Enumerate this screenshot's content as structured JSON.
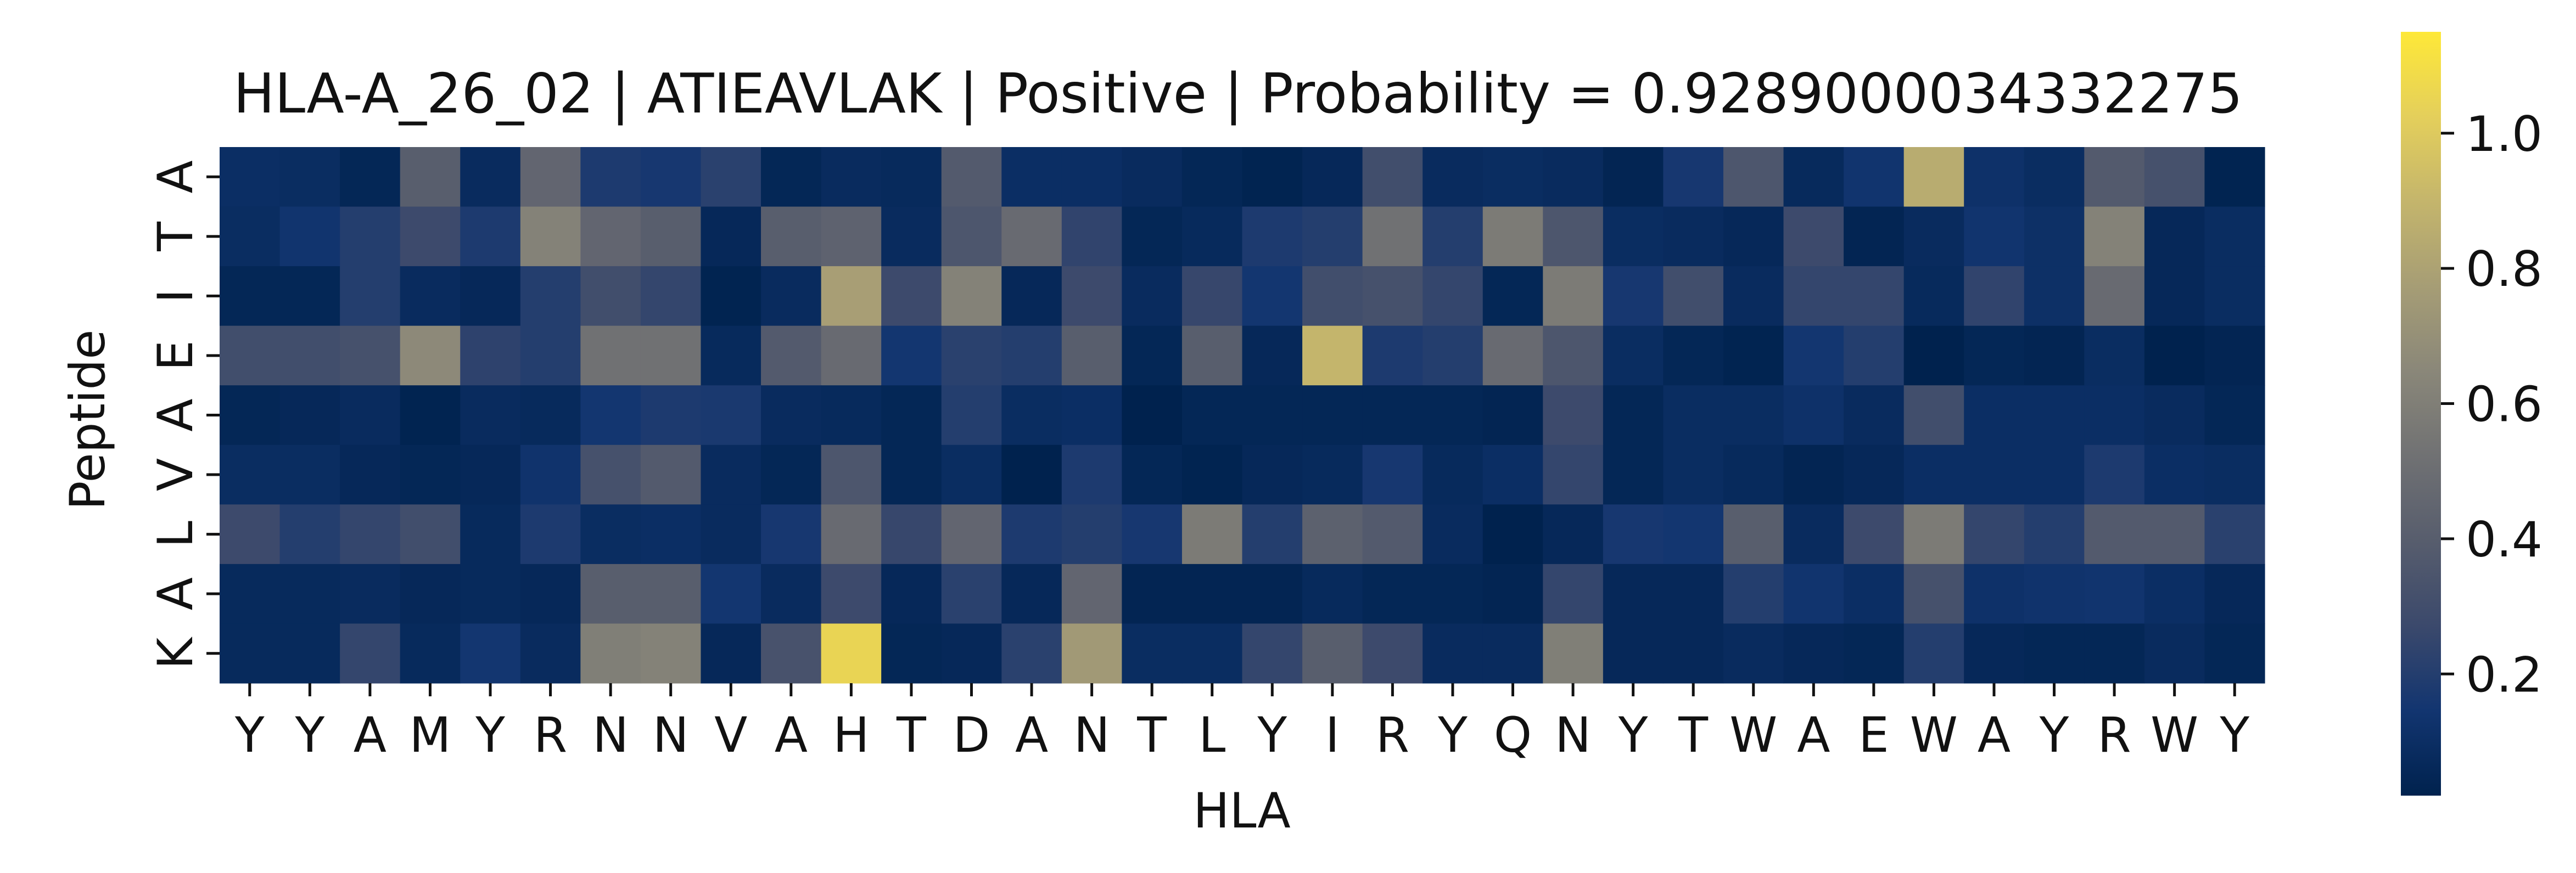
{
  "chart_data": {
    "type": "heatmap",
    "title": "HLA-A_26_02 | ATIEAVLAK | Positive | Probability = 0.9289000034332275",
    "xlabel": "HLA",
    "ylabel": "Peptide",
    "x_categories": [
      "Y",
      "Y",
      "A",
      "M",
      "Y",
      "R",
      "N",
      "N",
      "V",
      "A",
      "H",
      "T",
      "D",
      "A",
      "N",
      "T",
      "L",
      "Y",
      "I",
      "R",
      "Y",
      "Q",
      "N",
      "Y",
      "T",
      "W",
      "A",
      "E",
      "W",
      "A",
      "Y",
      "R",
      "W",
      "Y"
    ],
    "y_categories": [
      "A",
      "T",
      "I",
      "E",
      "A",
      "V",
      "L",
      "A",
      "K"
    ],
    "values": [
      [
        0.1,
        0.09,
        0.05,
        0.4,
        0.08,
        0.45,
        0.18,
        0.16,
        0.22,
        0.05,
        0.08,
        0.07,
        0.38,
        0.1,
        0.1,
        0.08,
        0.05,
        0.03,
        0.06,
        0.3,
        0.08,
        0.09,
        0.08,
        0.04,
        0.16,
        0.35,
        0.07,
        0.14,
        0.85,
        0.12,
        0.09,
        0.38,
        0.32,
        0.03
      ],
      [
        0.09,
        0.14,
        0.2,
        0.28,
        0.18,
        0.62,
        0.45,
        0.4,
        0.06,
        0.4,
        0.43,
        0.08,
        0.35,
        0.48,
        0.24,
        0.05,
        0.07,
        0.18,
        0.2,
        0.52,
        0.2,
        0.58,
        0.35,
        0.09,
        0.08,
        0.06,
        0.28,
        0.04,
        0.08,
        0.14,
        0.11,
        0.62,
        0.06,
        0.09
      ],
      [
        0.05,
        0.05,
        0.2,
        0.08,
        0.06,
        0.2,
        0.3,
        0.25,
        0.03,
        0.08,
        0.78,
        0.28,
        0.62,
        0.06,
        0.28,
        0.08,
        0.26,
        0.15,
        0.3,
        0.32,
        0.25,
        0.05,
        0.58,
        0.16,
        0.3,
        0.08,
        0.25,
        0.25,
        0.07,
        0.24,
        0.11,
        0.48,
        0.06,
        0.09
      ],
      [
        0.3,
        0.3,
        0.32,
        0.66,
        0.23,
        0.2,
        0.52,
        0.52,
        0.07,
        0.38,
        0.48,
        0.15,
        0.22,
        0.2,
        0.4,
        0.05,
        0.4,
        0.06,
        0.9,
        0.18,
        0.2,
        0.48,
        0.35,
        0.09,
        0.05,
        0.03,
        0.15,
        0.2,
        0.02,
        0.05,
        0.04,
        0.09,
        0.02,
        0.04
      ],
      [
        0.05,
        0.06,
        0.08,
        0.03,
        0.08,
        0.07,
        0.15,
        0.18,
        0.17,
        0.08,
        0.07,
        0.05,
        0.2,
        0.09,
        0.1,
        0.02,
        0.05,
        0.05,
        0.05,
        0.05,
        0.05,
        0.04,
        0.28,
        0.05,
        0.09,
        0.09,
        0.12,
        0.08,
        0.3,
        0.1,
        0.1,
        0.1,
        0.08,
        0.05
      ],
      [
        0.09,
        0.09,
        0.06,
        0.05,
        0.06,
        0.13,
        0.32,
        0.38,
        0.08,
        0.05,
        0.35,
        0.05,
        0.09,
        0.02,
        0.18,
        0.05,
        0.03,
        0.06,
        0.07,
        0.16,
        0.07,
        0.1,
        0.25,
        0.05,
        0.09,
        0.07,
        0.04,
        0.06,
        0.1,
        0.1,
        0.1,
        0.18,
        0.1,
        0.09
      ],
      [
        0.28,
        0.2,
        0.25,
        0.3,
        0.07,
        0.18,
        0.09,
        0.1,
        0.08,
        0.16,
        0.48,
        0.26,
        0.45,
        0.18,
        0.2,
        0.16,
        0.58,
        0.2,
        0.42,
        0.38,
        0.08,
        0.02,
        0.06,
        0.16,
        0.15,
        0.4,
        0.08,
        0.28,
        0.58,
        0.25,
        0.2,
        0.38,
        0.38,
        0.22
      ],
      [
        0.07,
        0.07,
        0.08,
        0.06,
        0.07,
        0.06,
        0.4,
        0.4,
        0.15,
        0.08,
        0.28,
        0.06,
        0.22,
        0.06,
        0.45,
        0.04,
        0.04,
        0.04,
        0.07,
        0.05,
        0.05,
        0.04,
        0.25,
        0.06,
        0.06,
        0.2,
        0.14,
        0.1,
        0.32,
        0.12,
        0.13,
        0.14,
        0.1,
        0.06
      ],
      [
        0.07,
        0.07,
        0.25,
        0.07,
        0.15,
        0.08,
        0.6,
        0.62,
        0.06,
        0.33,
        1.05,
        0.05,
        0.06,
        0.22,
        0.75,
        0.09,
        0.09,
        0.25,
        0.4,
        0.28,
        0.08,
        0.08,
        0.6,
        0.06,
        0.06,
        0.08,
        0.06,
        0.05,
        0.2,
        0.06,
        0.05,
        0.05,
        0.08,
        0.05
      ]
    ],
    "vmin": 0.02,
    "vmax": 1.15,
    "colorbar_ticks": [
      0.2,
      0.4,
      0.6,
      0.8,
      1.0
    ],
    "colorbar_tick_labels": [
      "0.2",
      "0.4",
      "0.6",
      "0.8",
      "1.0"
    ],
    "colormap": "cividis",
    "colormap_stops": [
      "#00224e",
      "#123570",
      "#3b496c",
      "#575d6d",
      "#707173",
      "#8a8779",
      "#a69d75",
      "#c4b56c",
      "#e4cf5b",
      "#fee838"
    ]
  }
}
